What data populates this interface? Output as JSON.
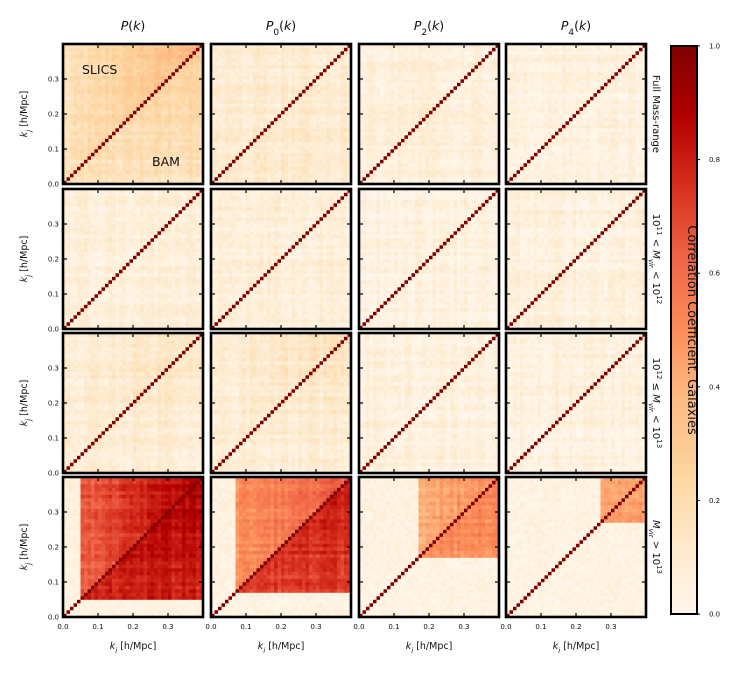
{
  "chart_data": {
    "type": "heatmap",
    "columns": [
      {
        "title": "P(k)",
        "title_main": "P",
        "title_sub": "",
        "title_arg": "(k)"
      },
      {
        "title": "P_0(k)",
        "title_main": "P",
        "title_sub": "0",
        "title_arg": "(k)"
      },
      {
        "title": "P_2(k)",
        "title_main": "P",
        "title_sub": "2",
        "title_arg": "(k)"
      },
      {
        "title": "P_4(k)",
        "title_main": "P",
        "title_sub": "4",
        "title_arg": "(k)"
      }
    ],
    "rows": [
      {
        "label": "Full Mass-range"
      },
      {
        "label": "10^11 < M_vir < 10^12"
      },
      {
        "label": "10^12 ≤ M_vir < 10^13"
      },
      {
        "label": "M_vir > 10^13"
      }
    ],
    "annotations": {
      "upper_triangle": "SLICS",
      "lower_triangle": "BAM"
    },
    "xlabel": "k_i [h/Mpc]",
    "ylabel": "k_j [h/Mpc]",
    "x_ticks": [
      "0.0",
      "0.1",
      "0.2",
      "0.3"
    ],
    "y_ticks": [
      "0.0",
      "0.1",
      "0.2",
      "0.3"
    ],
    "k_range": [
      0.0,
      0.4
    ],
    "grid_bins": 40,
    "colorbar": {
      "label": "Correlation Coefficient. Galaxies",
      "range": [
        0.0,
        1.0
      ],
      "ticks": [
        "0.0",
        "0.2",
        "0.4",
        "0.6",
        "0.8",
        "1.0"
      ],
      "colormap": [
        "#fff7ec",
        "#fee8c8",
        "#fdd49e",
        "#fdbb84",
        "#fc8d59",
        "#ef6548",
        "#d7301f",
        "#b30000",
        "#7f0000"
      ]
    },
    "panels": [
      {
        "row": 0,
        "col": 0,
        "upper": {
          "k_start": 0.0,
          "level": 0.14,
          "corner": 0.26
        },
        "lower": {
          "k_start": 0.0,
          "level": 0.14,
          "corner": 0.14
        }
      },
      {
        "row": 0,
        "col": 1,
        "upper": {
          "k_start": 0.0,
          "level": 0.09,
          "corner": 0.0
        },
        "lower": {
          "k_start": 0.0,
          "level": 0.1,
          "corner": 0.0
        }
      },
      {
        "row": 0,
        "col": 2,
        "upper": {
          "k_start": 0.0,
          "level": 0.06,
          "corner": 0.0
        },
        "lower": {
          "k_start": 0.0,
          "level": 0.06,
          "corner": 0.0
        }
      },
      {
        "row": 0,
        "col": 3,
        "upper": {
          "k_start": 0.0,
          "level": 0.05,
          "corner": 0.0
        },
        "lower": {
          "k_start": 0.0,
          "level": 0.05,
          "corner": 0.0
        }
      },
      {
        "row": 1,
        "col": 0,
        "upper": {
          "k_start": 0.0,
          "level": 0.06,
          "corner": 0.0
        },
        "lower": {
          "k_start": 0.0,
          "level": 0.06,
          "corner": 0.0
        }
      },
      {
        "row": 1,
        "col": 1,
        "upper": {
          "k_start": 0.0,
          "level": 0.06,
          "corner": 0.0
        },
        "lower": {
          "k_start": 0.0,
          "level": 0.06,
          "corner": 0.0
        }
      },
      {
        "row": 1,
        "col": 2,
        "upper": {
          "k_start": 0.0,
          "level": 0.05,
          "corner": 0.0
        },
        "lower": {
          "k_start": 0.0,
          "level": 0.05,
          "corner": 0.0
        }
      },
      {
        "row": 1,
        "col": 3,
        "upper": {
          "k_start": 0.0,
          "level": 0.05,
          "corner": 0.0
        },
        "lower": {
          "k_start": 0.0,
          "level": 0.05,
          "corner": 0.0
        }
      },
      {
        "row": 2,
        "col": 0,
        "upper": {
          "k_start": 0.0,
          "level": 0.07,
          "corner": 0.1
        },
        "lower": {
          "k_start": 0.0,
          "level": 0.07,
          "corner": 0.08
        }
      },
      {
        "row": 2,
        "col": 1,
        "upper": {
          "k_start": 0.0,
          "level": 0.07,
          "corner": 0.1
        },
        "lower": {
          "k_start": 0.0,
          "level": 0.07,
          "corner": 0.08
        }
      },
      {
        "row": 2,
        "col": 2,
        "upper": {
          "k_start": 0.0,
          "level": 0.05,
          "corner": 0.0
        },
        "lower": {
          "k_start": 0.0,
          "level": 0.05,
          "corner": 0.0
        }
      },
      {
        "row": 2,
        "col": 3,
        "upper": {
          "k_start": 0.0,
          "level": 0.05,
          "corner": 0.0
        },
        "lower": {
          "k_start": 0.0,
          "level": 0.05,
          "corner": 0.0
        }
      },
      {
        "row": 3,
        "col": 0,
        "upper": {
          "k_start": 0.05,
          "level": 0.6,
          "corner": 0.3
        },
        "lower": {
          "k_start": 0.05,
          "level": 0.78,
          "corner": 0.1
        }
      },
      {
        "row": 3,
        "col": 1,
        "upper": {
          "k_start": 0.07,
          "level": 0.45,
          "corner": 0.2
        },
        "lower": {
          "k_start": 0.07,
          "level": 0.7,
          "corner": 0.1
        }
      },
      {
        "row": 3,
        "col": 2,
        "upper": {
          "k_start": 0.17,
          "level": 0.35,
          "corner": 0.15
        },
        "lower": {
          "k_start": 0.17,
          "level": 0.48,
          "corner": 0.05
        }
      },
      {
        "row": 3,
        "col": 3,
        "upper": {
          "k_start": 0.27,
          "level": 0.35,
          "corner": 0.1
        },
        "lower": {
          "k_start": 0.27,
          "level": 0.4,
          "corner": 0.05
        }
      }
    ]
  }
}
